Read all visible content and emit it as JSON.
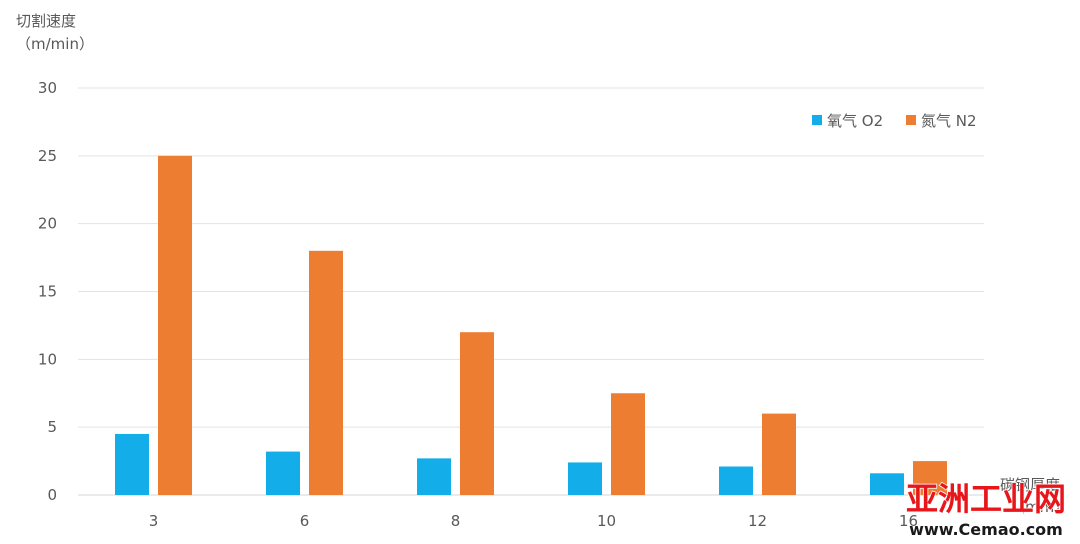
{
  "chart_data": {
    "type": "bar",
    "title": "",
    "ylabel_line1": "切割速度",
    "ylabel_line2": "（m/min）",
    "xlabel_line1": "碳钢厚度",
    "xlabel_line2": "（mm）",
    "categories": [
      "3",
      "6",
      "8",
      "10",
      "12",
      "16"
    ],
    "series": [
      {
        "name": "氧气 O2",
        "color": "#13aee9",
        "values": [
          4.5,
          3.2,
          2.7,
          2.4,
          2.1,
          1.6
        ]
      },
      {
        "name": "氮气 N2",
        "color": "#ed7d31",
        "values": [
          25,
          18,
          12,
          7.5,
          6,
          2.5
        ]
      }
    ],
    "ylim": [
      0,
      30
    ],
    "yticks": [
      0,
      5,
      10,
      15,
      20,
      25,
      30
    ],
    "grid": true,
    "legend_position": "top-right"
  },
  "watermark": {
    "text_main": "亚洲工业网",
    "text_url": "www.Cemao.com",
    "color_main": "#e8161b"
  }
}
